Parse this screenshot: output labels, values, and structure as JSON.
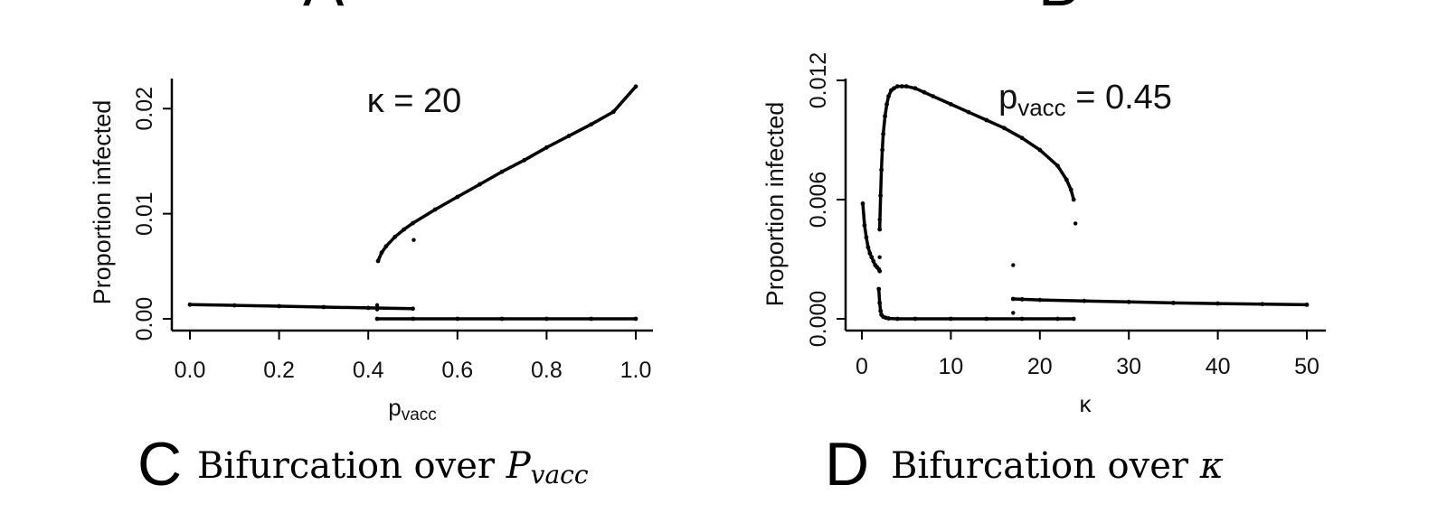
{
  "top_fragment": {
    "left": "A",
    "right": "B"
  },
  "chart_data": [
    {
      "type": "scatter",
      "panel": "C",
      "caption": {
        "letter": "C",
        "text": "Bifurcation over ",
        "math": "P",
        "math_sub": "vacc"
      },
      "annotation": {
        "text": "κ = 20"
      },
      "ylabel": "Proportion infected",
      "xlabel": {
        "main": "p",
        "sub": "vacc"
      },
      "xlim": [
        0,
        1.0
      ],
      "ylim": [
        0,
        0.022
      ],
      "xticks": [
        "0.0",
        "0.2",
        "0.4",
        "0.6",
        "0.8",
        "1.0"
      ],
      "xtick_values": [
        0,
        0.2,
        0.4,
        0.6,
        0.8,
        1.0
      ],
      "yticks": [
        "0.00",
        "0.01",
        "0.02"
      ],
      "ytick_values": [
        0,
        0.01,
        0.02
      ],
      "series": [
        {
          "x": [
            0.0,
            0.1,
            0.2,
            0.3,
            0.4,
            0.5
          ],
          "y": [
            0.00135,
            0.00128,
            0.0012,
            0.00112,
            0.00104,
            0.00096
          ]
        },
        {
          "x": [
            0.42,
            0.5,
            0.6,
            0.7,
            0.8,
            0.9,
            1.0
          ],
          "y": [
            0.0,
            0.0,
            0.0,
            0.0,
            0.0,
            0.0,
            0.0
          ]
        },
        {
          "x": [
            0.422,
            0.43,
            0.44,
            0.46,
            0.48,
            0.5,
            0.55,
            0.6,
            0.65,
            0.7,
            0.75,
            0.8,
            0.85,
            0.9,
            0.95,
            1.0
          ],
          "y": [
            0.0055,
            0.0063,
            0.0069,
            0.0078,
            0.0085,
            0.0091,
            0.0104,
            0.0116,
            0.0128,
            0.014,
            0.0151,
            0.0163,
            0.0174,
            0.0185,
            0.0197,
            0.0221
          ]
        },
        {
          "x": [
            0.502,
            0.42,
            0.42
          ],
          "y": [
            0.0075,
            0.0013,
            0.0009
          ]
        }
      ]
    },
    {
      "type": "scatter",
      "panel": "D",
      "caption": {
        "letter": "D",
        "text": "Bifurcation over ",
        "math": "κ"
      },
      "annotation": {
        "main": "p",
        "sub": "vacc",
        "rest": " = 0.45"
      },
      "ylabel": "Proportion infected",
      "xlabel": {
        "main": "κ"
      },
      "xlim": [
        0,
        50
      ],
      "ylim": [
        0,
        0.012
      ],
      "xticks": [
        "0",
        "10",
        "20",
        "30",
        "40",
        "50"
      ],
      "xtick_values": [
        0,
        10,
        20,
        30,
        40,
        50
      ],
      "yticks": [
        "0.000",
        "0.006",
        "0.012"
      ],
      "ytick_values": [
        0,
        0.006,
        0.012
      ],
      "series": [
        {
          "x": [
            0.1,
            0.3,
            0.5,
            0.7,
            0.9,
            1.1,
            1.3,
            1.5,
            1.7,
            1.9,
            2.0
          ],
          "y": [
            0.0058,
            0.0047,
            0.0041,
            0.0036,
            0.0033,
            0.0031,
            0.0029,
            0.0027,
            0.0026,
            0.0025,
            0.0024
          ]
        },
        {
          "x": [
            1.9,
            2.0,
            2.1,
            2.2,
            2.4,
            2.7,
            3.0,
            4,
            6,
            10,
            14,
            18,
            22,
            23.8
          ],
          "y": [
            0.0015,
            0.0008,
            0.0004,
            0.0002,
            0.0001,
            5e-05,
            2e-05,
            0.0,
            0.0,
            0.0,
            0.0,
            0.0,
            0.0,
            0.0
          ]
        },
        {
          "x": [
            2.0,
            2.1,
            2.2,
            2.3,
            2.4,
            2.6,
            2.8,
            3.0,
            3.3,
            3.6,
            4.0,
            4.5,
            5.0,
            6,
            7,
            8,
            10,
            12,
            14,
            16,
            18,
            20,
            22,
            23,
            23.5,
            23.8
          ],
          "y": [
            0.0045,
            0.0062,
            0.0075,
            0.0085,
            0.0093,
            0.0102,
            0.0108,
            0.0112,
            0.0115,
            0.0116,
            0.0117,
            0.0117,
            0.0117,
            0.0116,
            0.0114,
            0.0112,
            0.0108,
            0.0104,
            0.01,
            0.0096,
            0.0091,
            0.0085,
            0.0077,
            0.007,
            0.0065,
            0.006
          ]
        },
        {
          "x": [
            17.0,
            18,
            20,
            25,
            30,
            35,
            40,
            45,
            50
          ],
          "y": [
            0.001,
            0.00098,
            0.00095,
            0.0009,
            0.00085,
            0.0008,
            0.00077,
            0.00074,
            0.00071
          ]
        },
        {
          "x": [
            17.0,
            17.0,
            24.0,
            2.0,
            2.0
          ],
          "y": [
            0.0027,
            0.0003,
            0.0048,
            0.005,
            0.0031
          ]
        }
      ]
    }
  ]
}
